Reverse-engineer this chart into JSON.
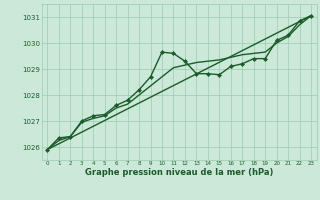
{
  "background_color": "#cce8d8",
  "grid_color": "#99ccb0",
  "line_color": "#1a5c2a",
  "marker_color": "#1a5c2a",
  "xlabel": "Graphe pression niveau de la mer (hPa)",
  "xlabel_color": "#1a5c2a",
  "ylabel_color": "#1a5c2a",
  "xlim": [
    -0.5,
    23.5
  ],
  "ylim": [
    1025.5,
    1031.5
  ],
  "yticks": [
    1026,
    1027,
    1028,
    1029,
    1030,
    1031
  ],
  "xticks": [
    0,
    1,
    2,
    3,
    4,
    5,
    6,
    7,
    8,
    9,
    10,
    11,
    12,
    13,
    14,
    15,
    16,
    17,
    18,
    19,
    20,
    21,
    22,
    23
  ],
  "series": [
    {
      "x": [
        0,
        1,
        2,
        3,
        4,
        5,
        6,
        7,
        8,
        9,
        10,
        11,
        12,
        13,
        14,
        15,
        16,
        17,
        18,
        19,
        20,
        21,
        22,
        23
      ],
      "y": [
        1025.9,
        1026.35,
        1026.4,
        1027.0,
        1027.2,
        1027.25,
        1027.6,
        1027.8,
        1028.2,
        1028.7,
        1029.65,
        1029.6,
        1029.3,
        1028.82,
        1028.82,
        1028.78,
        1029.1,
        1029.2,
        1029.4,
        1029.4,
        1030.1,
        1030.3,
        1030.85,
        1031.05
      ],
      "with_markers": true,
      "lw": 1.0
    },
    {
      "x": [
        0,
        23
      ],
      "y": [
        1025.9,
        1031.05
      ],
      "with_markers": false,
      "lw": 1.0
    },
    {
      "x": [
        0,
        1,
        2,
        3,
        4,
        5,
        6,
        7,
        8,
        9,
        10,
        11,
        12,
        13,
        14,
        15,
        16,
        17,
        18,
        19,
        20,
        21,
        22,
        23
      ],
      "y": [
        1025.9,
        1026.25,
        1026.4,
        1026.95,
        1027.1,
        1027.2,
        1027.5,
        1027.65,
        1028.0,
        1028.35,
        1028.7,
        1029.05,
        1029.15,
        1029.25,
        1029.3,
        1029.35,
        1029.45,
        1029.55,
        1029.6,
        1029.65,
        1030.0,
        1030.25,
        1030.7,
        1031.05
      ],
      "with_markers": false,
      "lw": 1.0
    }
  ]
}
